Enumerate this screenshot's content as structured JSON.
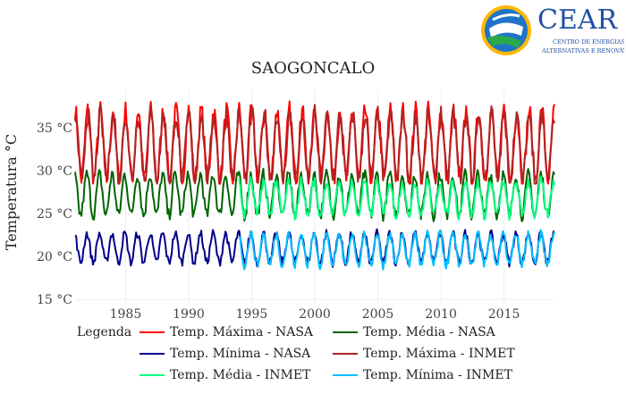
{
  "logo": {
    "brand": "CEAR",
    "line1": "CENTRO DE ENERGIAS",
    "line2": "ALTERNATIVAS E RENOVÁVEIS"
  },
  "chart_data": {
    "type": "line",
    "title": "SAOGONCALO",
    "xlabel": "",
    "ylabel": "Temperatura °C",
    "xlim": [
      1981,
      2019
    ],
    "ylim": [
      14.5,
      39.5
    ],
    "x_ticks": [
      1985,
      1990,
      1995,
      2000,
      2005,
      2010,
      2015
    ],
    "x_tick_labels": [
      "1985",
      "1990",
      "1995",
      "2000",
      "2005",
      "2010",
      "2015"
    ],
    "y_ticks": [
      15,
      20,
      25,
      30,
      35
    ],
    "y_tick_labels": [
      "15 °C",
      "20 °C",
      "25 °C",
      "30 °C",
      "35 °C"
    ],
    "grid": true,
    "legend_title": "Legenda",
    "legend_position": "bottom",
    "series": [
      {
        "name": "Temp. Máxima - NASA",
        "color": "#ff0000",
        "x_start": 1981,
        "x_end": 2019,
        "seasonal_mean": 33.0,
        "seasonal_amplitude": 4.0,
        "min": 28.5,
        "max": 38.5
      },
      {
        "name": "Temp. Média - NASA",
        "color": "#006400",
        "x_start": 1981,
        "x_end": 2019,
        "seasonal_mean": 27.2,
        "seasonal_amplitude": 2.4,
        "min": 23.8,
        "max": 30.5
      },
      {
        "name": "Temp. Mínima - NASA",
        "color": "#00008b",
        "x_start": 1981,
        "x_end": 2019,
        "seasonal_mean": 21.0,
        "seasonal_amplitude": 1.7,
        "min": 18.0,
        "max": 23.8
      },
      {
        "name": "Temp. Máxima - INMET",
        "color": "#b22222",
        "x_start": 1981,
        "x_end": 2019,
        "seasonal_mean": 32.8,
        "seasonal_amplitude": 3.8,
        "min": 28.5,
        "max": 38.0
      },
      {
        "name": "Temp. Média - INMET",
        "color": "#00ff7f",
        "x_start": 1994,
        "x_end": 2019,
        "seasonal_mean": 26.8,
        "seasonal_amplitude": 2.0,
        "min": 24.0,
        "max": 29.5
      },
      {
        "name": "Temp. Mínima - INMET",
        "color": "#00bfff",
        "x_start": 1994,
        "x_end": 2019,
        "seasonal_mean": 20.8,
        "seasonal_amplitude": 1.8,
        "min": 16.5,
        "max": 24.5
      }
    ]
  }
}
